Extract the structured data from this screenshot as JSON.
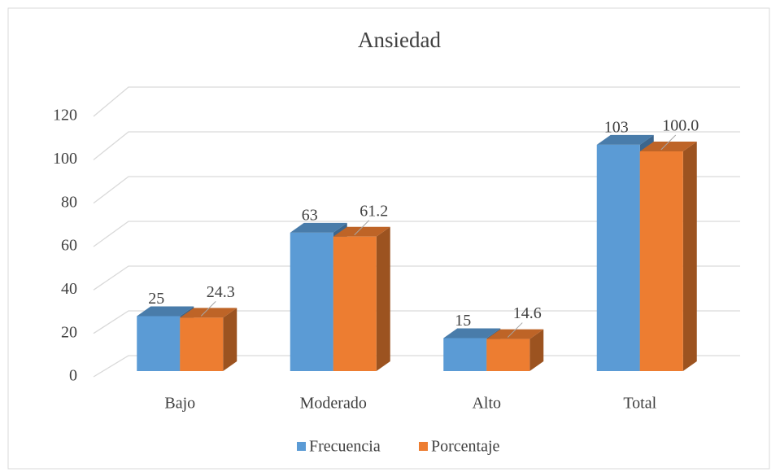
{
  "chart_data": {
    "type": "bar3d",
    "title": "Ansiedad",
    "categories": [
      "Bajo",
      "Moderado",
      "Alto",
      "Total"
    ],
    "series": [
      {
        "name": "Frecuencia",
        "color": "#5b9bd5",
        "values": [
          25,
          63,
          15,
          103
        ]
      },
      {
        "name": "Porcentaje",
        "color": "#ed7d31",
        "values": [
          24.3,
          61.2,
          14.6,
          100.0
        ],
        "value_labels": [
          "24.3",
          "61.2",
          "14.6",
          "100.0"
        ]
      }
    ],
    "ylim": [
      0,
      120
    ],
    "yticks": [
      0,
      20,
      40,
      60,
      80,
      100,
      120
    ],
    "grid": true,
    "legend": "bottom"
  }
}
